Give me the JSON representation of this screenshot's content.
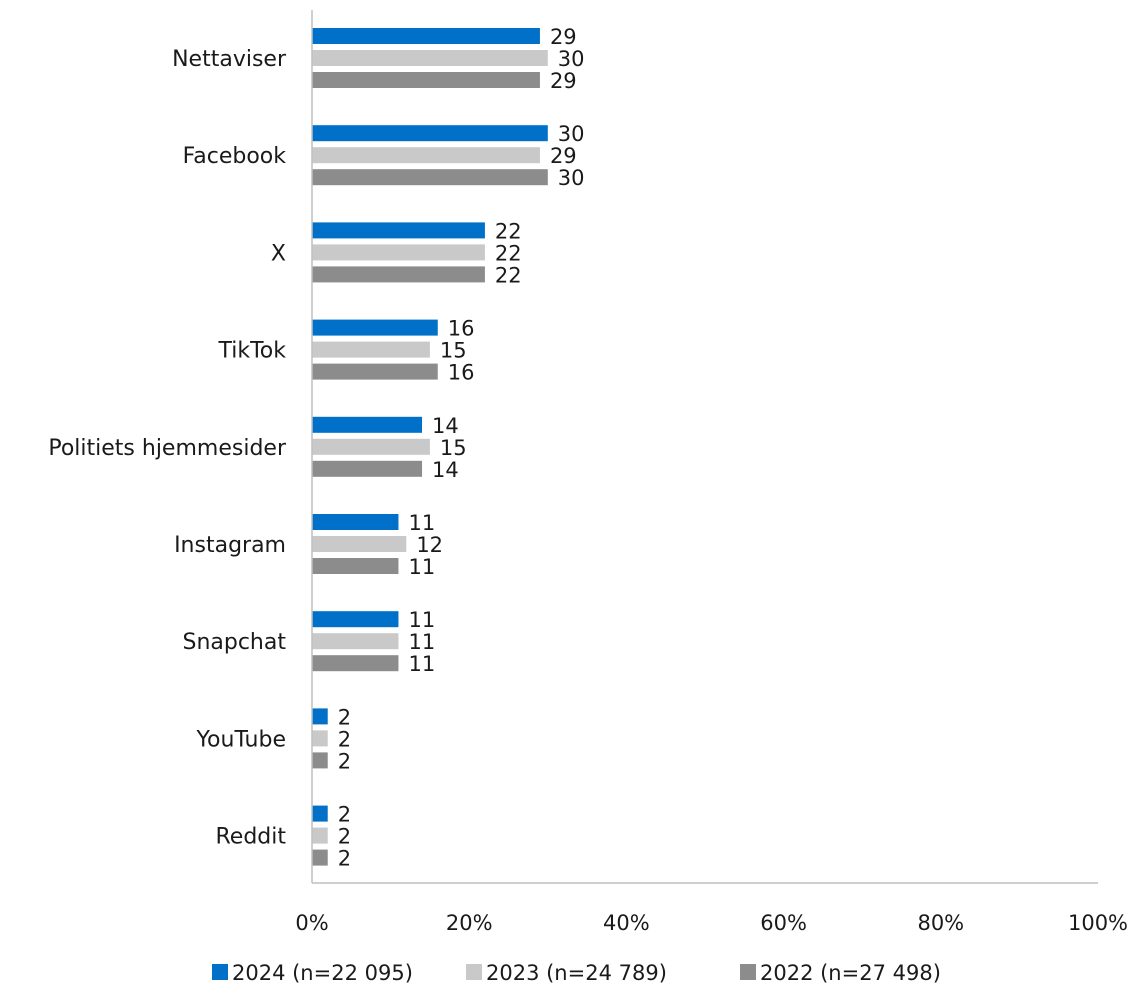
{
  "chart_data": {
    "type": "bar",
    "orientation": "horizontal",
    "categories": [
      "Nettaviser",
      "Facebook",
      "X",
      "TikTok",
      "Politiets hjemmesider",
      "Instagram",
      "Snapchat",
      "YouTube",
      "Reddit"
    ],
    "series": [
      {
        "name": "2024 (n=22 095)",
        "color": "#0070C8",
        "values": [
          29,
          30,
          22,
          16,
          14,
          11,
          11,
          2,
          2
        ]
      },
      {
        "name": "2023 (n=24 789)",
        "color": "#C9C9C9",
        "values": [
          30,
          29,
          22,
          15,
          15,
          12,
          11,
          2,
          2
        ]
      },
      {
        "name": "2022 (n=27 498)",
        "color": "#8C8C8C",
        "values": [
          29,
          30,
          22,
          16,
          14,
          11,
          11,
          2,
          2
        ]
      }
    ],
    "xlim": [
      0,
      100
    ],
    "x_ticks": [
      0,
      20,
      40,
      60,
      80,
      100
    ],
    "x_tick_format": "percent",
    "data_labels": true,
    "grid": false,
    "legend_position": "bottom"
  }
}
